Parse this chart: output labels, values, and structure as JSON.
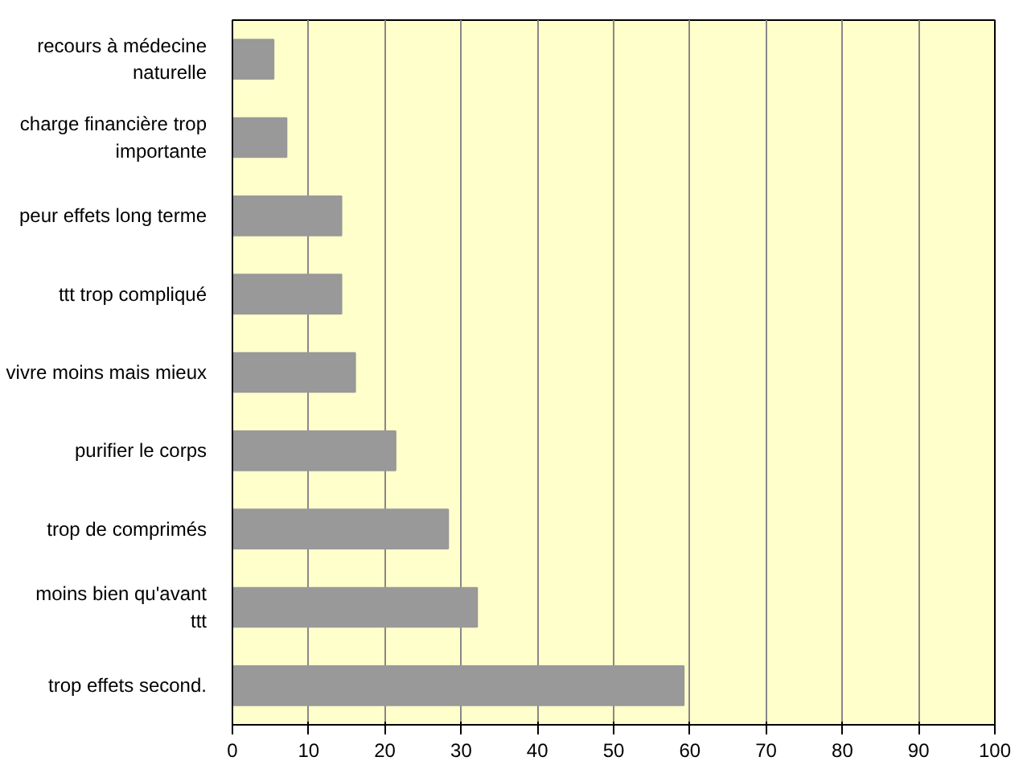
{
  "chart_data": {
    "type": "bar",
    "orientation": "horizontal",
    "categories": [
      "recours à médecine naturelle",
      "charge financière trop importante",
      "peur effets long terme",
      "ttt trop compliqué",
      "vivre moins mais mieux",
      "purifier le corps",
      "trop de comprimés",
      "moins bien qu'avant ttt",
      "trop effets second."
    ],
    "values": [
      5.4,
      7.1,
      14.3,
      14.3,
      16.1,
      21.4,
      28.3,
      32.1,
      59.2
    ],
    "color": "#999999",
    "xlim": [
      0,
      100
    ],
    "xticks": [
      0,
      10,
      20,
      30,
      40,
      50,
      60,
      70,
      80,
      90,
      100
    ],
    "grid": "x"
  }
}
